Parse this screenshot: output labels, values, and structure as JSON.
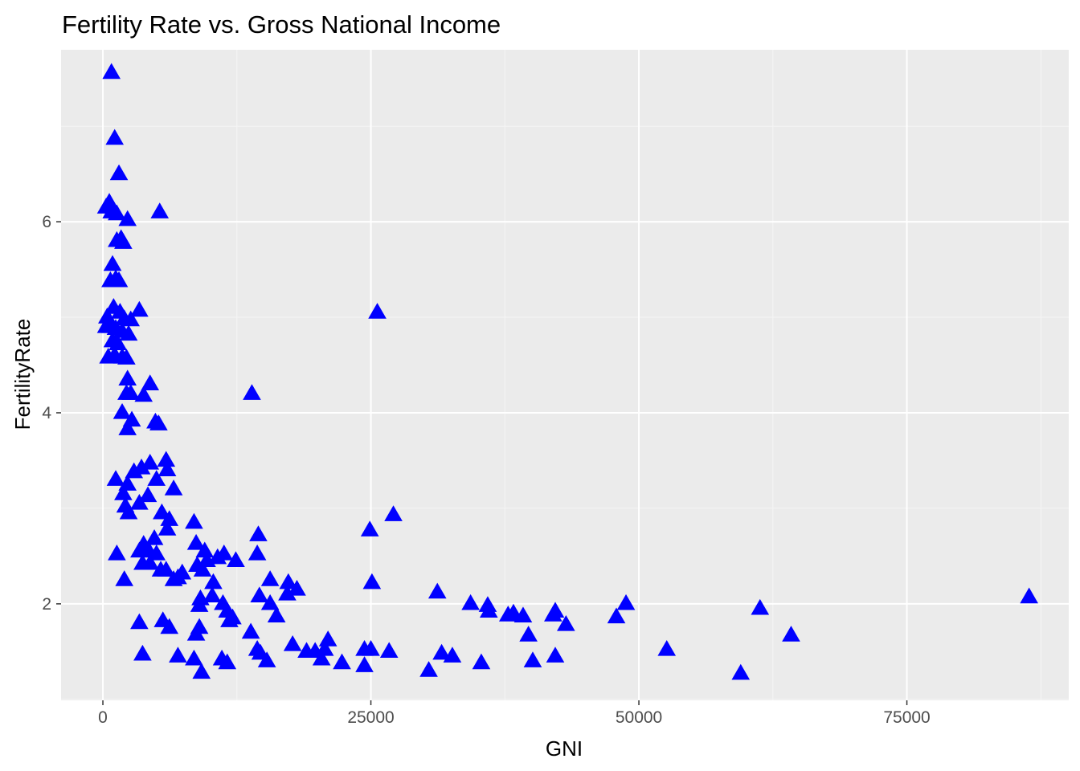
{
  "chart_data": {
    "type": "scatter",
    "title": "Fertility Rate vs. Gross National Income",
    "xlabel": "GNI",
    "ylabel": "FertilityRate",
    "xlim": [
      -3900,
      90100
    ],
    "ylim": [
      0.99,
      7.8
    ],
    "x_ticks": [
      0,
      25000,
      50000,
      75000
    ],
    "x_tick_labels": [
      "0",
      "25000",
      "50000",
      "75000"
    ],
    "y_ticks": [
      2,
      4,
      6
    ],
    "y_tick_labels": [
      "2",
      "4",
      "6"
    ],
    "grid": true,
    "marker": "triangle",
    "colors": {
      "panel_bg": "#ebebeb",
      "grid_major": "#ffffff",
      "grid_minor": "#f5f5f5",
      "point": "#0000ff",
      "tick": "#333333"
    },
    "points": [
      [
        800,
        7.56
      ],
      [
        1100,
        6.87
      ],
      [
        1500,
        6.5
      ],
      [
        600,
        6.2
      ],
      [
        300,
        6.15
      ],
      [
        800,
        6.1
      ],
      [
        1300,
        6.08
      ],
      [
        2300,
        6.02
      ],
      [
        5300,
        6.1
      ],
      [
        1300,
        5.8
      ],
      [
        1700,
        5.82
      ],
      [
        1900,
        5.78
      ],
      [
        900,
        5.55
      ],
      [
        700,
        5.38
      ],
      [
        1200,
        5.4
      ],
      [
        1500,
        5.38
      ],
      [
        1000,
        5.1
      ],
      [
        3400,
        5.07
      ],
      [
        400,
        5.0
      ],
      [
        1600,
        5.05
      ],
      [
        2000,
        4.98
      ],
      [
        2600,
        4.97
      ],
      [
        300,
        4.9
      ],
      [
        700,
        4.9
      ],
      [
        1200,
        4.88
      ],
      [
        1800,
        4.85
      ],
      [
        2400,
        4.82
      ],
      [
        900,
        4.75
      ],
      [
        1400,
        4.72
      ],
      [
        500,
        4.58
      ],
      [
        1100,
        4.6
      ],
      [
        1800,
        4.58
      ],
      [
        2200,
        4.57
      ],
      [
        2300,
        4.35
      ],
      [
        2200,
        4.2
      ],
      [
        4400,
        4.3
      ],
      [
        2600,
        4.2
      ],
      [
        3800,
        4.18
      ],
      [
        1800,
        4.0
      ],
      [
        2700,
        3.92
      ],
      [
        4900,
        3.9
      ],
      [
        5200,
        3.88
      ],
      [
        2300,
        3.83
      ],
      [
        5900,
        3.5
      ],
      [
        6000,
        3.4
      ],
      [
        4400,
        3.47
      ],
      [
        3600,
        3.42
      ],
      [
        2900,
        3.38
      ],
      [
        5000,
        3.3
      ],
      [
        1200,
        3.3
      ],
      [
        2300,
        3.25
      ],
      [
        6600,
        3.2
      ],
      [
        1900,
        3.15
      ],
      [
        4200,
        3.13
      ],
      [
        3400,
        3.05
      ],
      [
        2100,
        3.02
      ],
      [
        2400,
        2.95
      ],
      [
        5500,
        2.95
      ],
      [
        6200,
        2.88
      ],
      [
        8500,
        2.85
      ],
      [
        6000,
        2.78
      ],
      [
        3800,
        2.62
      ],
      [
        8700,
        2.63
      ],
      [
        4800,
        2.68
      ],
      [
        3400,
        2.55
      ],
      [
        1300,
        2.52
      ],
      [
        4300,
        2.55
      ],
      [
        5000,
        2.52
      ],
      [
        9500,
        2.55
      ],
      [
        11300,
        2.52
      ],
      [
        3700,
        2.42
      ],
      [
        4400,
        2.42
      ],
      [
        10700,
        2.48
      ],
      [
        9700,
        2.45
      ],
      [
        12400,
        2.45
      ],
      [
        8800,
        2.4
      ],
      [
        5400,
        2.35
      ],
      [
        9300,
        2.35
      ],
      [
        5900,
        2.35
      ],
      [
        7400,
        2.32
      ],
      [
        6600,
        2.25
      ],
      [
        2000,
        2.25
      ],
      [
        7000,
        2.27
      ],
      [
        10300,
        2.22
      ],
      [
        9100,
        2.05
      ],
      [
        10200,
        2.08
      ],
      [
        11200,
        2.0
      ],
      [
        9000,
        1.98
      ],
      [
        11600,
        1.92
      ],
      [
        12100,
        1.85
      ],
      [
        11800,
        1.82
      ],
      [
        3400,
        1.8
      ],
      [
        5600,
        1.82
      ],
      [
        6200,
        1.75
      ],
      [
        9000,
        1.75
      ],
      [
        8700,
        1.68
      ],
      [
        7000,
        1.45
      ],
      [
        3700,
        1.47
      ],
      [
        8500,
        1.42
      ],
      [
        9200,
        1.28
      ],
      [
        11100,
        1.42
      ],
      [
        11600,
        1.38
      ],
      [
        14500,
        2.72
      ],
      [
        14400,
        2.52
      ],
      [
        15600,
        2.25
      ],
      [
        14600,
        2.08
      ],
      [
        15600,
        2.0
      ],
      [
        13800,
        1.7
      ],
      [
        14400,
        1.52
      ],
      [
        14700,
        1.48
      ],
      [
        15300,
        1.4
      ],
      [
        16200,
        1.87
      ],
      [
        17300,
        2.22
      ],
      [
        17200,
        2.1
      ],
      [
        18100,
        2.15
      ],
      [
        17700,
        1.57
      ],
      [
        19000,
        1.5
      ],
      [
        19800,
        1.5
      ],
      [
        20400,
        1.42
      ],
      [
        21000,
        1.62
      ],
      [
        20700,
        1.52
      ],
      [
        22300,
        1.38
      ],
      [
        13900,
        4.2
      ],
      [
        25600,
        5.05
      ],
      [
        24900,
        2.77
      ],
      [
        25100,
        2.22
      ],
      [
        27100,
        2.93
      ],
      [
        24400,
        1.52
      ],
      [
        25000,
        1.52
      ],
      [
        24400,
        1.35
      ],
      [
        26700,
        1.5
      ],
      [
        31200,
        2.12
      ],
      [
        30400,
        1.3
      ],
      [
        31600,
        1.48
      ],
      [
        32600,
        1.45
      ],
      [
        34300,
        2.0
      ],
      [
        35900,
        1.98
      ],
      [
        36000,
        1.92
      ],
      [
        35300,
        1.38
      ],
      [
        37800,
        1.88
      ],
      [
        38300,
        1.9
      ],
      [
        39200,
        1.87
      ],
      [
        39700,
        1.67
      ],
      [
        40100,
        1.4
      ],
      [
        42200,
        1.92
      ],
      [
        42000,
        1.88
      ],
      [
        42200,
        1.45
      ],
      [
        43200,
        1.78
      ],
      [
        47900,
        1.86
      ],
      [
        48800,
        2.0
      ],
      [
        52600,
        1.52
      ],
      [
        59500,
        1.27
      ],
      [
        61300,
        1.95
      ],
      [
        64200,
        1.67
      ],
      [
        86400,
        2.07
      ]
    ]
  }
}
